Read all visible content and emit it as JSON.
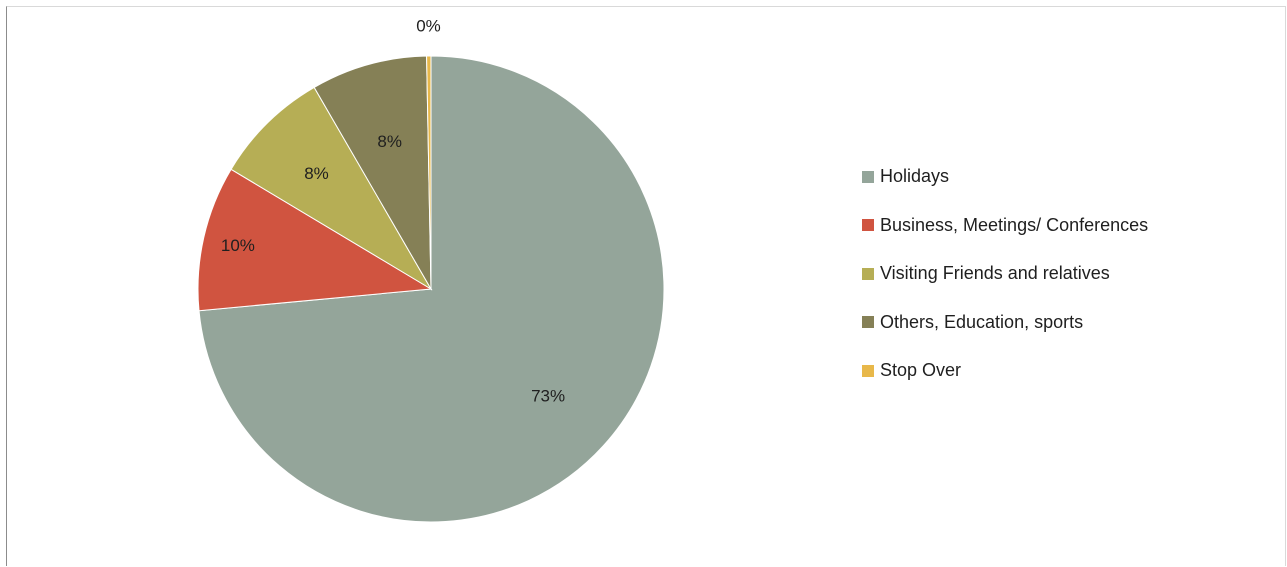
{
  "chart_data": {
    "type": "pie",
    "title": "",
    "legend_position": "right",
    "slices": [
      {
        "label": "Holidays",
        "value": 73,
        "display": "73%",
        "color": "#94a59a"
      },
      {
        "label": "Business, Meetings/ Conferences",
        "value": 10,
        "display": "10%",
        "color": "#d05440"
      },
      {
        "label": "Visiting Friends and relatives",
        "value": 8,
        "display": "8%",
        "color": "#b6ae55"
      },
      {
        "label": "Others, Education, sports",
        "value": 8,
        "display": "8%",
        "color": "#858056"
      },
      {
        "label": "Stop Over",
        "value": 0.3,
        "display": "0%",
        "color": "#e8b84a"
      }
    ]
  }
}
